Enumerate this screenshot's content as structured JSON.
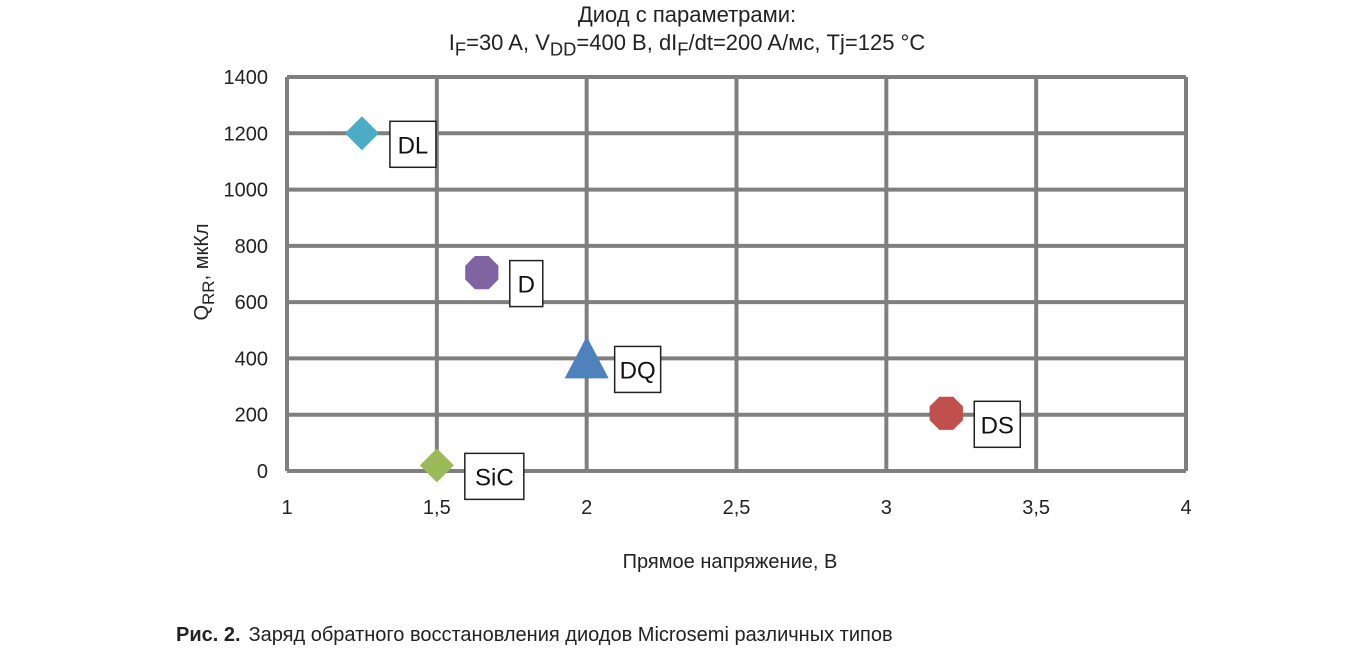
{
  "chart_data": {
    "type": "scatter",
    "title_line1": "Диод с параметрами:",
    "title_line2": {
      "p1": "I",
      "p1sub": "F",
      "p2": "=30 A, V",
      "p2sub": "DD",
      "p3": "=400 B, dI",
      "p3sub": "F",
      "p4": "/dt=200 A/мс, Tj=125 °C"
    },
    "xlabel": "Прямое напряжение, В",
    "ylabel": {
      "main": "Q",
      "sub": "RR",
      "rest": ", мкКл"
    },
    "xlim": [
      1,
      4
    ],
    "ylim": [
      0,
      1400
    ],
    "x_ticks": [
      1,
      1.5,
      2,
      2.5,
      3,
      3.5,
      4
    ],
    "x_tick_labels": [
      "1",
      "1,5",
      "2",
      "2,5",
      "3",
      "3,5",
      "4"
    ],
    "y_ticks": [
      0,
      200,
      400,
      600,
      800,
      1000,
      1200,
      1400
    ],
    "y_tick_labels": [
      "0",
      "200",
      "400",
      "600",
      "800",
      "1000",
      "1200",
      "1400"
    ],
    "grid": true,
    "points": [
      {
        "label": "DL",
        "x": 1.25,
        "y": 1200,
        "marker": "diamond",
        "color": "#4bacc6"
      },
      {
        "label": "D",
        "x": 1.65,
        "y": 705,
        "marker": "octagon",
        "color": "#8064a2"
      },
      {
        "label": "DQ",
        "x": 2.0,
        "y": 400,
        "marker": "triangle",
        "color": "#4f81bd"
      },
      {
        "label": "DS",
        "x": 3.2,
        "y": 205,
        "marker": "octagon",
        "color": "#c0504d"
      },
      {
        "label": "SiC",
        "x": 1.5,
        "y": 20,
        "marker": "diamond",
        "color": "#9bbb59"
      }
    ]
  },
  "caption": {
    "lead": "Рис. 2.",
    "text": "Заряд обратного восстановления диодов Microsemi различных типов"
  }
}
